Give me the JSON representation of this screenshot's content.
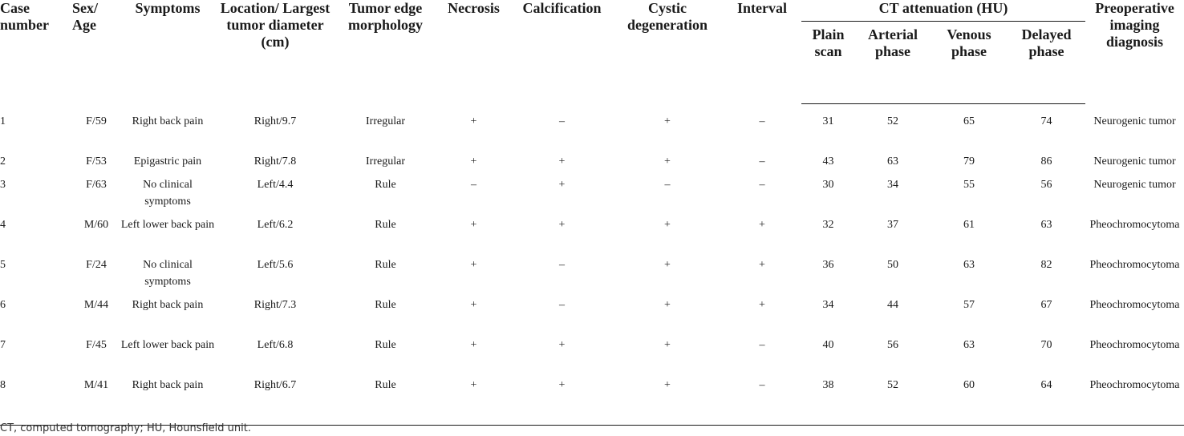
{
  "columns": {
    "case_number": "Case number",
    "sex_age": "Sex/ Age",
    "symptoms": "Symptoms",
    "location": "Location/ Largest tumor diameter (cm)",
    "edge": "Tumor edge morphology",
    "necrosis": "Necrosis",
    "calcification": "Calcification",
    "cystic": "Cystic degeneration",
    "interval": "Interval",
    "ct_group": "CT attenuation (HU)",
    "plain": "Plain scan",
    "arterial": "Arterial phase",
    "venous": "Venous phase",
    "delayed": "Delayed phase",
    "diagnosis": "Preoperative imaging diagnosis"
  },
  "rows": [
    {
      "case": "1",
      "sex_age": "F/59",
      "symptoms": "Right back pain",
      "location": "Right/9.7",
      "edge": "Irregular",
      "necrosis": "+",
      "calcification": "–",
      "cystic": "+",
      "interval": "–",
      "plain": "31",
      "arterial": "52",
      "venous": "65",
      "delayed": "74",
      "diagnosis": "Neurogenic tumor"
    },
    {
      "case": "2",
      "sex_age": "F/53",
      "symptoms": "Epigastric pain",
      "location": "Right/7.8",
      "edge": "Irregular",
      "necrosis": "+",
      "calcification": "+",
      "cystic": "+",
      "interval": "–",
      "plain": "43",
      "arterial": "63",
      "venous": "79",
      "delayed": "86",
      "diagnosis": "Neurogenic tumor"
    },
    {
      "case": "3",
      "sex_age": "F/63",
      "symptoms": "No clinical symptoms",
      "location": "Left/4.4",
      "edge": "Rule",
      "necrosis": "–",
      "calcification": "+",
      "cystic": "–",
      "interval": "–",
      "plain": "30",
      "arterial": "34",
      "venous": "55",
      "delayed": "56",
      "diagnosis": "Neurogenic tumor"
    },
    {
      "case": "4",
      "sex_age": "M/60",
      "symptoms": "Left lower back pain",
      "location": "Left/6.2",
      "edge": "Rule",
      "necrosis": "+",
      "calcification": "+",
      "cystic": "+",
      "interval": "+",
      "plain": "32",
      "arterial": "37",
      "venous": "61",
      "delayed": "63",
      "diagnosis": "Pheochromocytoma"
    },
    {
      "case": "5",
      "sex_age": "F/24",
      "symptoms": "No clinical symptoms",
      "location": "Left/5.6",
      "edge": "Rule",
      "necrosis": "+",
      "calcification": "–",
      "cystic": "+",
      "interval": "+",
      "plain": "36",
      "arterial": "50",
      "venous": "63",
      "delayed": "82",
      "diagnosis": "Pheochromocytoma"
    },
    {
      "case": "6",
      "sex_age": "M/44",
      "symptoms": "Right back pain",
      "location": "Right/7.3",
      "edge": "Rule",
      "necrosis": "+",
      "calcification": "–",
      "cystic": "+",
      "interval": "+",
      "plain": "34",
      "arterial": "44",
      "venous": "57",
      "delayed": "67",
      "diagnosis": "Pheochromocytoma"
    },
    {
      "case": "7",
      "sex_age": "F/45",
      "symptoms": "Left lower back pain",
      "location": "Left/6.8",
      "edge": "Rule",
      "necrosis": "+",
      "calcification": "+",
      "cystic": "+",
      "interval": "–",
      "plain": "40",
      "arterial": "56",
      "venous": "63",
      "delayed": "70",
      "diagnosis": "Pheochromocytoma"
    },
    {
      "case": "8",
      "sex_age": "M/41",
      "symptoms": "Right back pain",
      "location": "Right/6.7",
      "edge": "Rule",
      "necrosis": "+",
      "calcification": "+",
      "cystic": "+",
      "interval": "–",
      "plain": "38",
      "arterial": "52",
      "venous": "60",
      "delayed": "64",
      "diagnosis": "Pheochromocytoma"
    }
  ],
  "footnote": "CT, computed tomography; HU, Hounsfield unit."
}
